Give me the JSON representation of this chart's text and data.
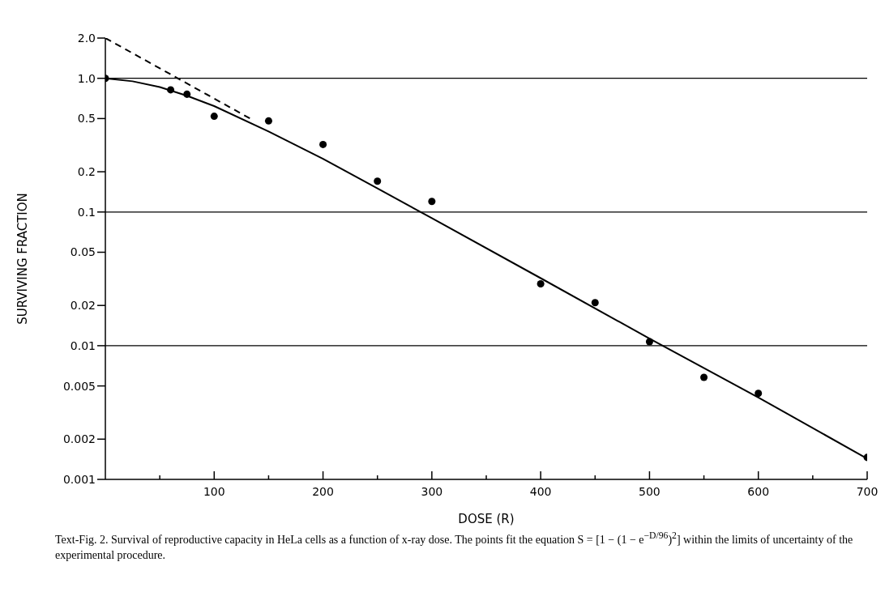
{
  "chart_data": {
    "type": "scatter",
    "xlabel": "DOSE (R)",
    "ylabel": "SURVIVING FRACTION",
    "annotations": [
      "Text-Fig. 2. Survival of reproductive capacity in HeLa cells as a function of x-ray dose. The points fit the equation S = [1 − (1 − e$^{−D/96}$)$^{2}$] within the limits of uncertainty of the experimental procedure."
    ],
    "series": [
      {
        "marker": "circle",
        "color": "#000000",
        "x": [
          0,
          60,
          75,
          100,
          150,
          200,
          250,
          300,
          400,
          450,
          500,
          550,
          600,
          700
        ],
        "values": [
          1.0,
          0.82,
          0.76,
          0.52,
          0.48,
          0.32,
          0.17,
          0.12,
          0.029,
          0.021,
          0.0107,
          0.0058,
          0.0044,
          0.00146
        ]
      },
      {
        "type": "line",
        "marker": "none",
        "color": "#000000",
        "line_style": "solid",
        "x": [
          0,
          25,
          50,
          75,
          100,
          150,
          200,
          250,
          300,
          400,
          500,
          600,
          700
        ],
        "values": [
          1.0,
          0.95,
          0.86,
          0.74,
          0.62,
          0.4,
          0.25,
          0.15,
          0.09,
          0.032,
          0.0113,
          0.0041,
          0.00143
        ]
      },
      {
        "type": "line",
        "marker": "none",
        "color": "#000000",
        "line_style": "dashed",
        "x": [
          0,
          135
        ],
        "values": [
          2.0,
          0.49
        ]
      }
    ],
    "xlim": [
      0,
      700
    ],
    "xticks": [
      {
        "value": 50,
        "label": null
      },
      100,
      {
        "value": 150,
        "label": null
      },
      200,
      {
        "value": 250,
        "label": null
      },
      300,
      {
        "value": 350,
        "label": null
      },
      400,
      {
        "value": 450,
        "label": null
      },
      500,
      {
        "value": 550,
        "label": null
      },
      600,
      {
        "value": 650,
        "label": null
      },
      700
    ],
    "ylim": [
      0.001,
      2.0
    ],
    "yticks": [
      0.001,
      0.002,
      0.005,
      0.01,
      0.02,
      0.05,
      0.1,
      0.2,
      0.5,
      {
        "value": 1,
        "label": "1.0"
      },
      {
        "value": 2,
        "label": "2.0"
      }
    ],
    "log": "y",
    "grid": false,
    "ref_lines": [
      {
        "axis": "y",
        "value": 1,
        "label": null
      },
      {
        "axis": "y",
        "value": 0.1,
        "label": null
      },
      {
        "axis": "y",
        "value": 0.01,
        "label": null
      }
    ]
  }
}
